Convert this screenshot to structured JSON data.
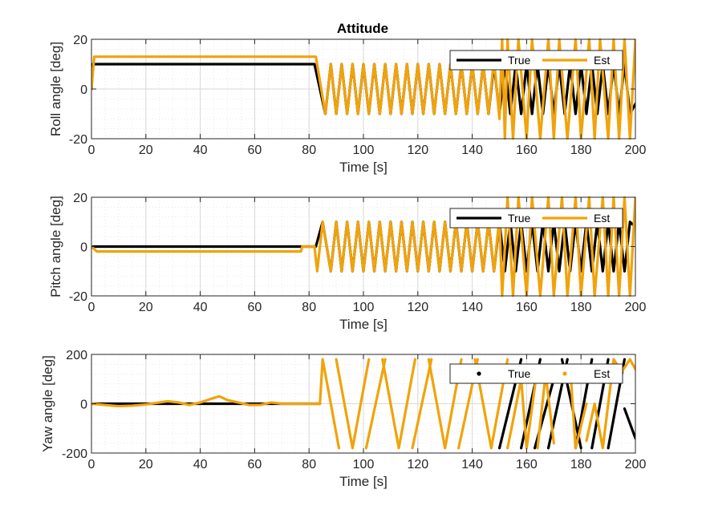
{
  "chart_data": {
    "title": "Attitude",
    "colors": {
      "true": "#000000",
      "est": "#F0A30A",
      "grid": "#d9d9d9",
      "axis": "#262626"
    },
    "panels": [
      {
        "type": "line",
        "xlabel": "Time [s]",
        "ylabel": "Roll angle [deg]",
        "xlim": [
          0,
          200
        ],
        "ylim": [
          -20,
          20
        ],
        "xticks": [
          0,
          20,
          40,
          60,
          80,
          100,
          120,
          140,
          160,
          180,
          200
        ],
        "yticks": [
          -20,
          0,
          20
        ],
        "grid": true,
        "legend_placement": "top-right",
        "legend_style": "line",
        "series": [
          {
            "name": "True",
            "color": "#000000",
            "x": [
              0,
              0.5,
              82,
              82,
              86,
              88,
              90,
              92,
              94,
              96,
              98,
              100,
              102,
              104,
              106,
              108,
              110,
              112,
              114,
              116,
              118,
              120,
              122,
              124,
              126,
              128,
              130,
              132,
              134,
              136,
              138,
              140,
              142,
              144,
              146,
              148,
              150,
              152,
              154,
              156,
              158,
              160,
              162,
              164,
              166,
              168,
              170,
              172,
              174,
              176,
              178,
              180,
              182,
              184,
              186,
              188,
              190,
              192,
              194,
              196,
              198,
              200
            ],
            "y": [
              0,
              10,
              10,
              10,
              -10,
              10,
              -10,
              10,
              -10,
              10,
              -10,
              10,
              -10,
              10,
              -10,
              10,
              -10,
              10,
              -10,
              10,
              -10,
              10,
              -10,
              10,
              -10,
              10,
              -10,
              10,
              -10,
              10,
              -10,
              10,
              -10,
              10,
              -10,
              10,
              -10,
              10,
              -10,
              10,
              -10,
              10,
              -10,
              10,
              -10,
              10,
              -10,
              10,
              -10,
              10,
              -10,
              10,
              -10,
              10,
              -10,
              10,
              -10,
              10,
              -10,
              10,
              -10,
              -6
            ]
          },
          {
            "name": "Est",
            "color": "#F0A30A",
            "x": [
              0,
              1,
              82,
              82.5,
              86,
              88,
              90,
              92,
              94,
              96,
              98,
              100,
              102,
              104,
              106,
              108,
              110,
              112,
              114,
              116,
              118,
              120,
              122,
              124,
              126,
              128,
              130,
              132,
              134,
              136,
              138,
              140,
              142,
              144,
              146,
              148,
              150,
              151,
              152,
              153,
              155,
              157,
              160,
              162,
              165,
              168,
              170,
              172,
              175,
              178,
              180,
              183,
              185,
              187,
              190,
              192,
              194,
              196,
              198,
              200
            ],
            "y": [
              0,
              13,
              13,
              13,
              -10,
              10,
              -10,
              10,
              -10,
              10,
              -10,
              10,
              -10,
              10,
              -10,
              10,
              -10,
              10,
              -10,
              10,
              -10,
              10,
              -10,
              10,
              -10,
              10,
              -10,
              10,
              -10,
              10,
              -10,
              10,
              -10,
              10,
              -10,
              12,
              -12,
              20,
              -20,
              20,
              -20,
              20,
              -20,
              20,
              -20,
              20,
              -20,
              20,
              -20,
              20,
              -20,
              20,
              -20,
              20,
              -20,
              20,
              -20,
              20,
              -20,
              20
            ]
          }
        ]
      },
      {
        "type": "line",
        "xlabel": "Time [s]",
        "ylabel": "Pitch angle [deg]",
        "xlim": [
          0,
          200
        ],
        "ylim": [
          -20,
          20
        ],
        "xticks": [
          0,
          20,
          40,
          60,
          80,
          100,
          120,
          140,
          160,
          180,
          200
        ],
        "yticks": [
          -20,
          0,
          20
        ],
        "grid": true,
        "legend_placement": "top-right",
        "legend_style": "line",
        "series": [
          {
            "name": "True",
            "color": "#000000",
            "x": [
              0,
              82,
              82.5,
              85,
              88,
              90,
              92,
              94,
              96,
              98,
              100,
              102,
              104,
              106,
              108,
              110,
              112,
              114,
              116,
              118,
              120,
              122,
              124,
              126,
              128,
              130,
              132,
              134,
              136,
              138,
              140,
              142,
              144,
              146,
              148,
              150,
              152,
              154,
              156,
              158,
              160,
              162,
              164,
              166,
              168,
              170,
              172,
              174,
              176,
              178,
              180,
              182,
              184,
              186,
              188,
              190,
              192,
              194,
              196,
              198,
              200
            ],
            "y": [
              0,
              0,
              0,
              10,
              -10,
              10,
              -10,
              10,
              -10,
              10,
              -10,
              10,
              -10,
              10,
              -10,
              10,
              -10,
              10,
              -10,
              10,
              -10,
              10,
              -10,
              10,
              -10,
              10,
              -10,
              10,
              -10,
              10,
              -10,
              10,
              -10,
              10,
              -10,
              10,
              -10,
              10,
              -10,
              10,
              -10,
              10,
              -10,
              10,
              -10,
              10,
              -10,
              10,
              -10,
              10,
              -10,
              10,
              -10,
              10,
              -10,
              10,
              -10,
              10,
              -10,
              10,
              8
            ]
          },
          {
            "name": "Est",
            "color": "#F0A30A",
            "x": [
              0,
              2,
              77,
              77.5,
              82,
              83,
              85,
              88,
              90,
              92,
              94,
              96,
              98,
              100,
              102,
              104,
              106,
              108,
              110,
              112,
              114,
              116,
              118,
              120,
              122,
              124,
              126,
              128,
              130,
              132,
              134,
              136,
              138,
              140,
              142,
              144,
              146,
              148,
              150,
              151,
              153,
              155,
              157,
              160,
              162,
              165,
              168,
              170,
              173,
              175,
              178,
              180,
              183,
              185,
              188,
              190,
              192,
              194,
              196,
              198,
              200
            ],
            "y": [
              0,
              -2,
              -2,
              0,
              0,
              -10,
              10,
              -10,
              10,
              -10,
              10,
              -10,
              10,
              -10,
              10,
              -10,
              10,
              -10,
              10,
              -10,
              10,
              -10,
              10,
              -10,
              10,
              -10,
              10,
              -10,
              10,
              -10,
              10,
              -10,
              10,
              -10,
              10,
              -10,
              10,
              -10,
              12,
              -20,
              20,
              -20,
              20,
              -20,
              20,
              -20,
              20,
              -20,
              20,
              -20,
              20,
              -20,
              20,
              -20,
              20,
              -20,
              20,
              -20,
              20,
              -20,
              20
            ]
          }
        ]
      },
      {
        "type": "line",
        "xlabel": "Time [s]",
        "ylabel": "Yaw angle [deg]",
        "xlim": [
          0,
          200
        ],
        "ylim": [
          -200,
          200
        ],
        "xticks": [
          0,
          20,
          40,
          60,
          80,
          100,
          120,
          140,
          160,
          180,
          200
        ],
        "yticks": [
          -200,
          0,
          200
        ],
        "grid": true,
        "legend_placement": "top-right",
        "legend_style": "marker",
        "series": [
          {
            "name": "True",
            "color": "#000000",
            "segments": [
              {
                "x": [
                  0,
                  84
                ],
                "y": [
                  0,
                  0
                ]
              },
              {
                "x": [
                  150,
                  158
                ],
                "y": [
                  -180,
                  180
                ]
              },
              {
                "x": [
                  158,
                  165
                ],
                "y": [
                  -180,
                  180
                ]
              },
              {
                "x": [
                  163,
                  170
                ],
                "y": [
                  -180,
                  100
                ]
              },
              {
                "x": [
                  168,
                  175
                ],
                "y": [
                  -180,
                  180
                ]
              },
              {
                "x": [
                  173,
                  180
                ],
                "y": [
                  180,
                  -180
                ]
              },
              {
                "x": [
                  178,
                  184
                ],
                "y": [
                  -180,
                  180
                ]
              },
              {
                "x": [
                  184,
                  190
                ],
                "y": [
                  -180,
                  180
                ]
              },
              {
                "x": [
                  190,
                  196
                ],
                "y": [
                  -180,
                  180
                ]
              },
              {
                "x": [
                  196,
                  200
                ],
                "y": [
                  -20,
                  -140
                ]
              }
            ]
          },
          {
            "name": "Est",
            "color": "#F0A30A",
            "segments": [
              {
                "x": [
                  0,
                  5,
                  10,
                  15,
                  20,
                  25,
                  28,
                  32,
                  36,
                  40,
                  44,
                  47,
                  50,
                  54,
                  58,
                  62,
                  66,
                  70,
                  74,
                  78,
                  82,
                  84
                ],
                "y": [
                  0,
                  -5,
                  -10,
                  -8,
                  -3,
                  5,
                  10,
                  5,
                  -5,
                  5,
                  20,
                  30,
                  15,
                  5,
                  -5,
                  -5,
                  5,
                  0,
                  0,
                  0,
                  0,
                  0
                ]
              },
              {
                "x": [
                  84,
                  85,
                  91
                ],
                "y": [
                  0,
                  180,
                  -180
                ]
              },
              {
                "x": [
                  90,
                  96,
                  102
                ],
                "y": [
                  180,
                  -180,
                  180
                ]
              },
              {
                "x": [
                  101,
                  108
                ],
                "y": [
                  -180,
                  180
                ]
              },
              {
                "x": [
                  107,
                  113,
                  119
                ],
                "y": [
                  180,
                  -180,
                  180
                ]
              },
              {
                "x": [
                  118,
                  125
                ],
                "y": [
                  -180,
                  180
                ]
              },
              {
                "x": [
                  124,
                  130,
                  136
                ],
                "y": [
                  180,
                  -180,
                  180
                ]
              },
              {
                "x": [
                  135,
                  142
                ],
                "y": [
                  -180,
                  180
                ]
              },
              {
                "x": [
                  141,
                  147,
                  153
                ],
                "y": [
                  180,
                  -180,
                  180
                ]
              },
              {
                "x": [
                  153,
                  158,
                  160,
                  164
                ],
                "y": [
                  -180,
                  100,
                  -180,
                  150
                ]
              },
              {
                "x": [
                  164,
                  167,
                  170
                ],
                "y": [
                  -180,
                  120,
                  -160
                ]
              },
              {
                "x": [
                  170,
                  176,
                  178,
                  182
                ],
                "y": [
                  100,
                  150,
                  -180,
                  0
                ]
              },
              {
                "x": [
                  182,
                  185,
                  188,
                  192,
                  195,
                  198,
                  200
                ],
                "y": [
                  -150,
                  0,
                  -180,
                  180,
                  130,
                  180,
                  140
                ]
              }
            ]
          }
        ]
      }
    ]
  }
}
